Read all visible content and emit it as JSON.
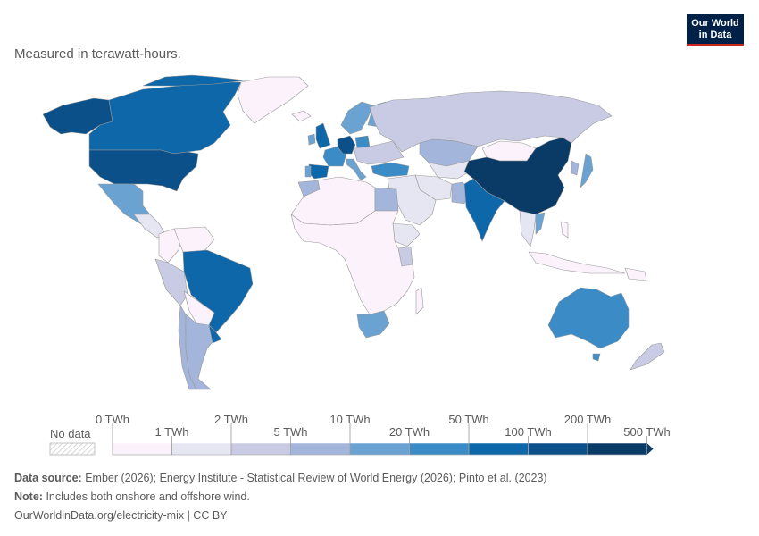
{
  "subtitle": "Measured in terawatt-hours.",
  "logo": {
    "line1": "Our World",
    "line2": "in Data"
  },
  "legend": {
    "no_data_label": "No data",
    "upper_labels": [
      "0 TWh",
      "2 TWh",
      "10 TWh",
      "50 TWh",
      "200 TWh"
    ],
    "lower_labels": [
      "1 TWh",
      "5 TWh",
      "20 TWh",
      "100 TWh",
      "500 TWh"
    ],
    "colors": [
      "#fbf2fb",
      "#e6e5f2",
      "#c8cbe3",
      "#a3b5da",
      "#6aa2d2",
      "#3a8bc6",
      "#0d67a8",
      "#0b5089",
      "#0a3a66"
    ]
  },
  "map_colors": {
    "no_data": "#ffffff",
    "border": "#9a9a9a"
  },
  "regions": [
    {
      "name": "Alaska",
      "bin": 7
    },
    {
      "name": "Canada",
      "bin": 6
    },
    {
      "name": "Greenland",
      "bin": 0
    },
    {
      "name": "United States",
      "bin": 7
    },
    {
      "name": "Mexico",
      "bin": 4
    },
    {
      "name": "Central America",
      "bin": 1
    },
    {
      "name": "Colombia",
      "bin": 0
    },
    {
      "name": "Venezuela",
      "bin": 0
    },
    {
      "name": "Brazil",
      "bin": 6
    },
    {
      "name": "Peru",
      "bin": 2
    },
    {
      "name": "Chile",
      "bin": 3
    },
    {
      "name": "Argentina",
      "bin": 3
    },
    {
      "name": "Uruguay",
      "bin": 6
    },
    {
      "name": "Bolivia Paraguay",
      "bin": 0
    },
    {
      "name": "Iceland",
      "bin": 0
    },
    {
      "name": "United Kingdom",
      "bin": 6
    },
    {
      "name": "Ireland",
      "bin": 4
    },
    {
      "name": "Scandinavia",
      "bin": 4
    },
    {
      "name": "Finland",
      "bin": 4
    },
    {
      "name": "Spain",
      "bin": 6
    },
    {
      "name": "Portugal",
      "bin": 4
    },
    {
      "name": "France",
      "bin": 5
    },
    {
      "name": "Germany",
      "bin": 7
    },
    {
      "name": "Poland",
      "bin": 5
    },
    {
      "name": "Italy",
      "bin": 4
    },
    {
      "name": "Eastern Europe",
      "bin": 2
    },
    {
      "name": "Turkey",
      "bin": 5
    },
    {
      "name": "Russia",
      "bin": 2
    },
    {
      "name": "Kazakhstan",
      "bin": 3
    },
    {
      "name": "Central Asia",
      "bin": 1
    },
    {
      "name": "Mongolia",
      "bin": 0
    },
    {
      "name": "China",
      "bin": 8
    },
    {
      "name": "Japan",
      "bin": 4
    },
    {
      "name": "Korea",
      "bin": 3
    },
    {
      "name": "India",
      "bin": 6
    },
    {
      "name": "Pakistan",
      "bin": 3
    },
    {
      "name": "Iran",
      "bin": 1
    },
    {
      "name": "Middle East",
      "bin": 1
    },
    {
      "name": "Southeast Asia",
      "bin": 1
    },
    {
      "name": "Vietnam",
      "bin": 4
    },
    {
      "name": "Philippines",
      "bin": 0
    },
    {
      "name": "Indonesia",
      "bin": 0
    },
    {
      "name": "North Africa",
      "bin": 0
    },
    {
      "name": "Morocco",
      "bin": 3
    },
    {
      "name": "Egypt",
      "bin": 3
    },
    {
      "name": "Kenya",
      "bin": 2
    },
    {
      "name": "Ethiopia",
      "bin": 1
    },
    {
      "name": "Central Africa",
      "bin": 0
    },
    {
      "name": "South Africa",
      "bin": 4
    },
    {
      "name": "Madagascar",
      "bin": 0
    },
    {
      "name": "Australia",
      "bin": 5
    },
    {
      "name": "New Zealand",
      "bin": 2
    },
    {
      "name": "Papua New Guinea",
      "bin": 0
    }
  ],
  "footer": {
    "source_label": "Data source:",
    "source_text": "Ember (2026); Energy Institute - Statistical Review of World Energy (2026); Pinto et al. (2023)",
    "note_label": "Note:",
    "note_text": "Includes both onshore and offshore wind.",
    "url_text": "OurWorldinData.org/electricity-mix | CC BY"
  }
}
